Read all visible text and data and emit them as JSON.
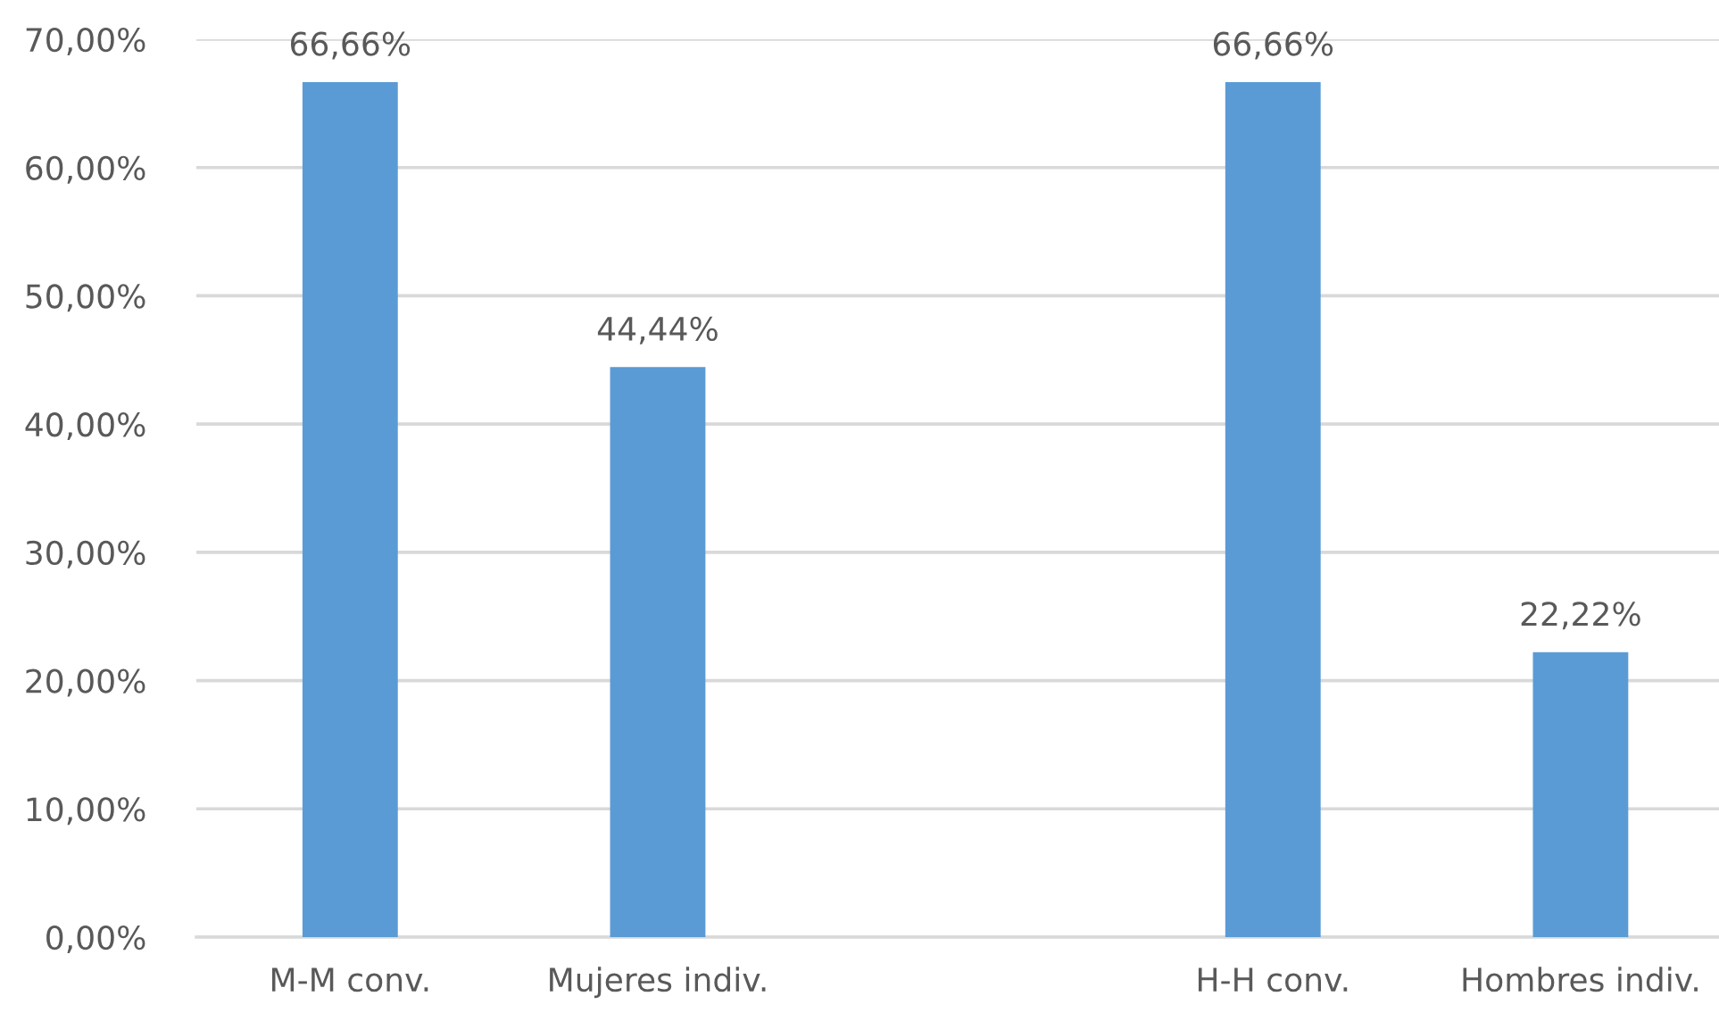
{
  "chart_data": {
    "type": "bar",
    "categories": [
      "M-M conv.",
      "Mujeres indiv.",
      null,
      "H-H conv.",
      "Hombres indiv."
    ],
    "values": [
      66.66,
      44.44,
      null,
      66.66,
      22.22
    ],
    "value_labels": [
      "66,66%",
      "44,44%",
      null,
      "66,66%",
      "22,22%"
    ],
    "color": "#5b9bd5",
    "ylim": [
      0,
      70
    ],
    "yticks": [
      {
        "value": 0,
        "label": "0,00%"
      },
      {
        "value": 10,
        "label": "10,00%"
      },
      {
        "value": 20,
        "label": "20,00%"
      },
      {
        "value": 30,
        "label": "30,00%"
      },
      {
        "value": 40,
        "label": "40,00%"
      },
      {
        "value": 50,
        "label": "50,00%"
      },
      {
        "value": 60,
        "label": "60,00%"
      },
      {
        "value": 70,
        "label": "70,00%"
      }
    ],
    "grid": "y"
  }
}
